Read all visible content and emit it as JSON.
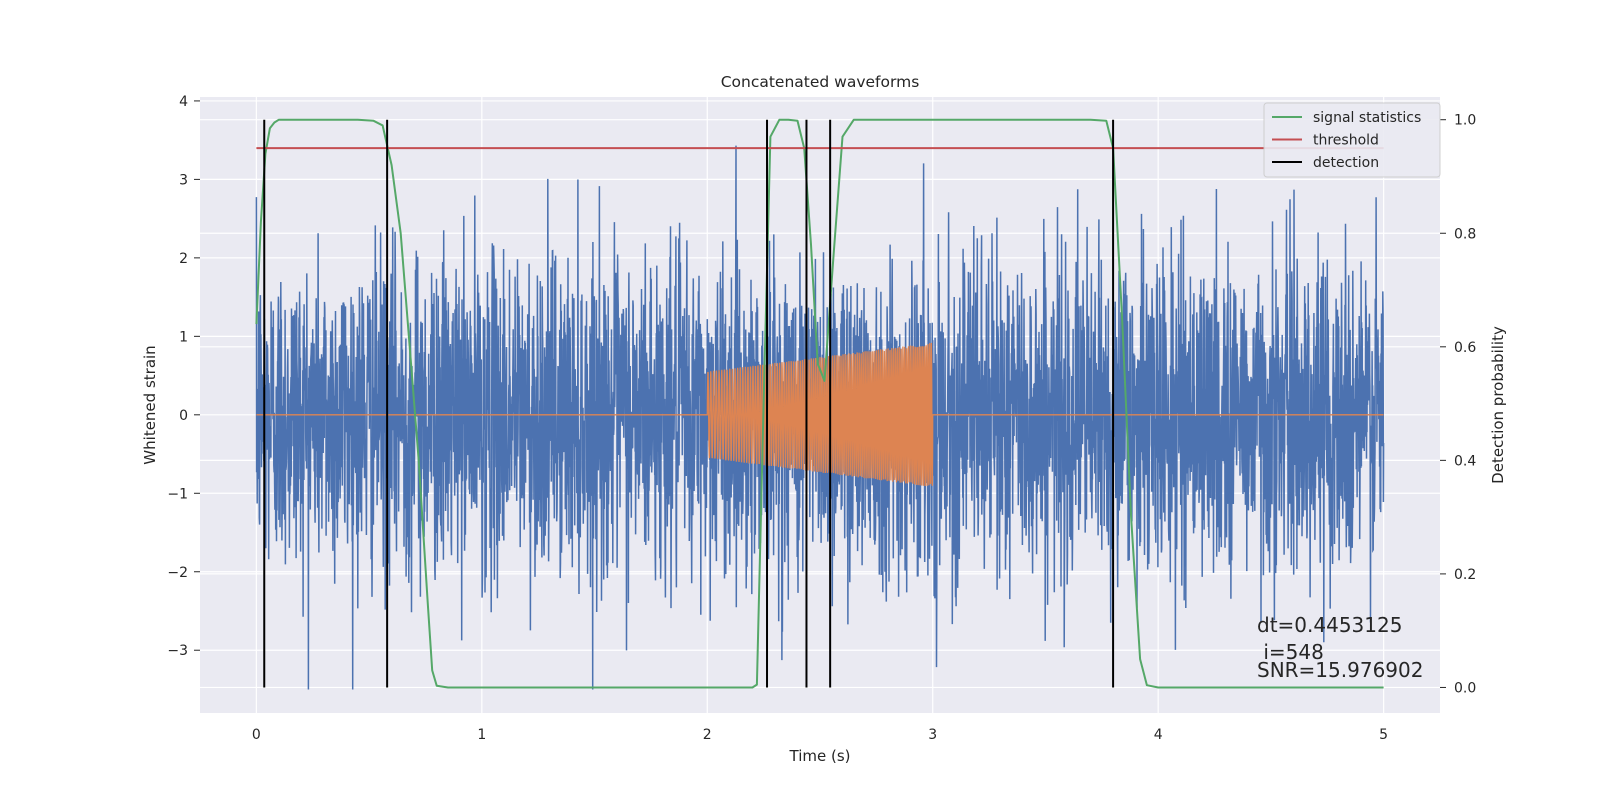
{
  "chart_data": {
    "type": "line",
    "title": "Concatenated waveforms",
    "xlabel": "Time (s)",
    "ylabel": "Whitened strain",
    "y2label": "Detection probability",
    "xlim": [
      -0.25,
      5.25
    ],
    "ylim": [
      -3.8,
      4.05
    ],
    "y2lim": [
      -0.045,
      1.04
    ],
    "xticks": [
      "0",
      "1",
      "2",
      "3",
      "4",
      "5"
    ],
    "yticks": [
      "−3",
      "−2",
      "−1",
      "0",
      "1",
      "2",
      "3",
      "4"
    ],
    "y2ticks": [
      "0.0",
      "0.2",
      "0.4",
      "0.6",
      "0.8",
      "1.0"
    ],
    "grid": true,
    "legend_position": "top-right",
    "noise": {
      "name": "",
      "color": "#4c72b0",
      "t_range": [
        0,
        5
      ],
      "approx_amplitude": 1.0,
      "approx_peak_range": [
        -3.5,
        3.7
      ]
    },
    "injected_signal": {
      "name": "",
      "color": "#dd8452",
      "t_start": 2.0,
      "t_end": 3.0,
      "amplitude_start": 0.55,
      "amplitude_end": 0.92
    },
    "series": [
      {
        "name": "signal statistics",
        "color": "#55a868",
        "axis": "right",
        "x": [
          0.0,
          0.02,
          0.04,
          0.06,
          0.08,
          0.1,
          0.2,
          0.45,
          0.52,
          0.56,
          0.6,
          0.64,
          0.68,
          0.72,
          0.76,
          0.78,
          0.8,
          0.85,
          2.2,
          2.22,
          2.25,
          2.28,
          2.32,
          2.36,
          2.4,
          2.43,
          2.46,
          2.49,
          2.52,
          2.56,
          2.6,
          2.65,
          2.8,
          3.7,
          3.77,
          3.8,
          3.84,
          3.88,
          3.92,
          3.95,
          4.0,
          5.0
        ],
        "values": [
          0.64,
          0.82,
          0.94,
          0.985,
          0.995,
          1.0,
          1.0,
          1.0,
          0.998,
          0.99,
          0.92,
          0.8,
          0.6,
          0.4,
          0.15,
          0.03,
          0.003,
          0.0,
          0.0,
          0.005,
          0.5,
          0.97,
          1.0,
          1.0,
          0.998,
          0.95,
          0.78,
          0.57,
          0.54,
          0.76,
          0.97,
          1.0,
          1.0,
          1.0,
          0.998,
          0.95,
          0.65,
          0.3,
          0.05,
          0.004,
          0.0,
          0.0
        ]
      },
      {
        "name": "threshold",
        "color": "#c44e52",
        "axis": "right",
        "x": [
          0.0,
          5.0
        ],
        "values": [
          0.95,
          0.95
        ]
      },
      {
        "name": "detection",
        "color": "#000000",
        "axis": "right",
        "type": "vlines",
        "x": [
          0.035,
          0.58,
          2.265,
          2.44,
          2.545,
          3.8
        ],
        "values": [
          1.0,
          1.0,
          1.0,
          1.0,
          1.0,
          1.0
        ]
      }
    ],
    "annotations": [
      "dt=0.4453125",
      " i=548",
      "SNR=15.976902"
    ]
  }
}
